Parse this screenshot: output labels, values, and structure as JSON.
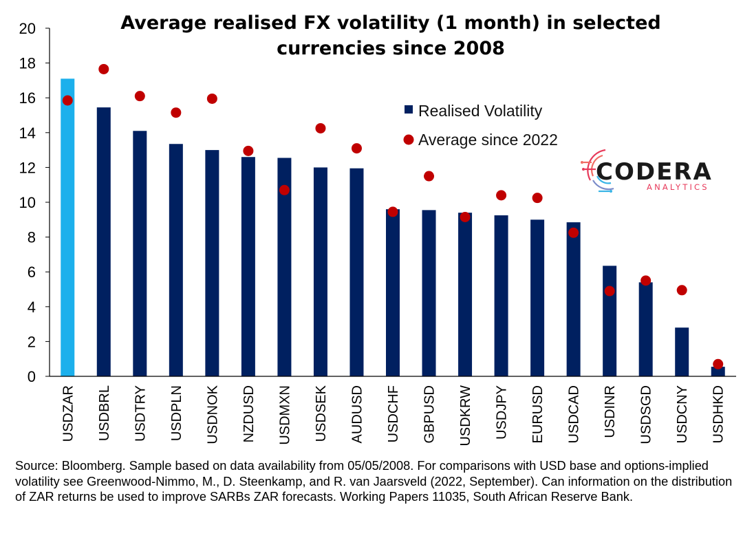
{
  "chart_data": {
    "type": "bar",
    "title_lines": [
      "Average realised FX volatility (1 month) in selected",
      "currencies since 2008"
    ],
    "categories": [
      "USDZAR",
      "USDBRL",
      "USDTRY",
      "USDPLN",
      "USDNOK",
      "NZDUSD",
      "USDMXN",
      "USDSEK",
      "AUDUSD",
      "USDCHF",
      "GBPUSD",
      "USDKRW",
      "USDJPY",
      "EURUSD",
      "USDCAD",
      "USDINR",
      "USDSGD",
      "USDCNY",
      "USDHKD"
    ],
    "series": [
      {
        "name": "Realised Volatility",
        "type": "bar",
        "color": "#002060",
        "highlight_color": "#1CB0EC",
        "highlight_index": 0,
        "values": [
          17.1,
          15.45,
          14.1,
          13.35,
          13.0,
          12.6,
          12.55,
          12.0,
          11.95,
          9.6,
          9.55,
          9.4,
          9.25,
          9.0,
          8.85,
          6.35,
          5.4,
          2.8,
          0.55
        ]
      },
      {
        "name": "Average since 2022",
        "type": "scatter",
        "color": "#C00000",
        "values": [
          15.85,
          17.65,
          16.1,
          15.15,
          15.95,
          12.95,
          10.7,
          14.25,
          13.1,
          9.45,
          11.5,
          9.15,
          10.4,
          10.25,
          8.25,
          4.9,
          5.5,
          4.95,
          0.7
        ]
      }
    ],
    "ylim": [
      0,
      20
    ],
    "yticks": [
      0,
      2,
      4,
      6,
      8,
      10,
      12,
      14,
      16,
      18,
      20
    ],
    "legend_position": "upper-right",
    "grid": false
  },
  "logo": {
    "name": "CODERA",
    "sub": "ANALYTICS",
    "icon": "codera-circuit-icon"
  },
  "source_text": "Source: Bloomberg. Sample based on data availability from 05/05/2008. For comparisons with USD base and options-implied volatility see Greenwood-Nimmo, M., D. Steenkamp, and R. van Jaarsveld (2022, September). Can information on the distribution of ZAR returns be used to improve SARBs ZAR forecasts. Working Papers 11035, South African Reserve Bank."
}
